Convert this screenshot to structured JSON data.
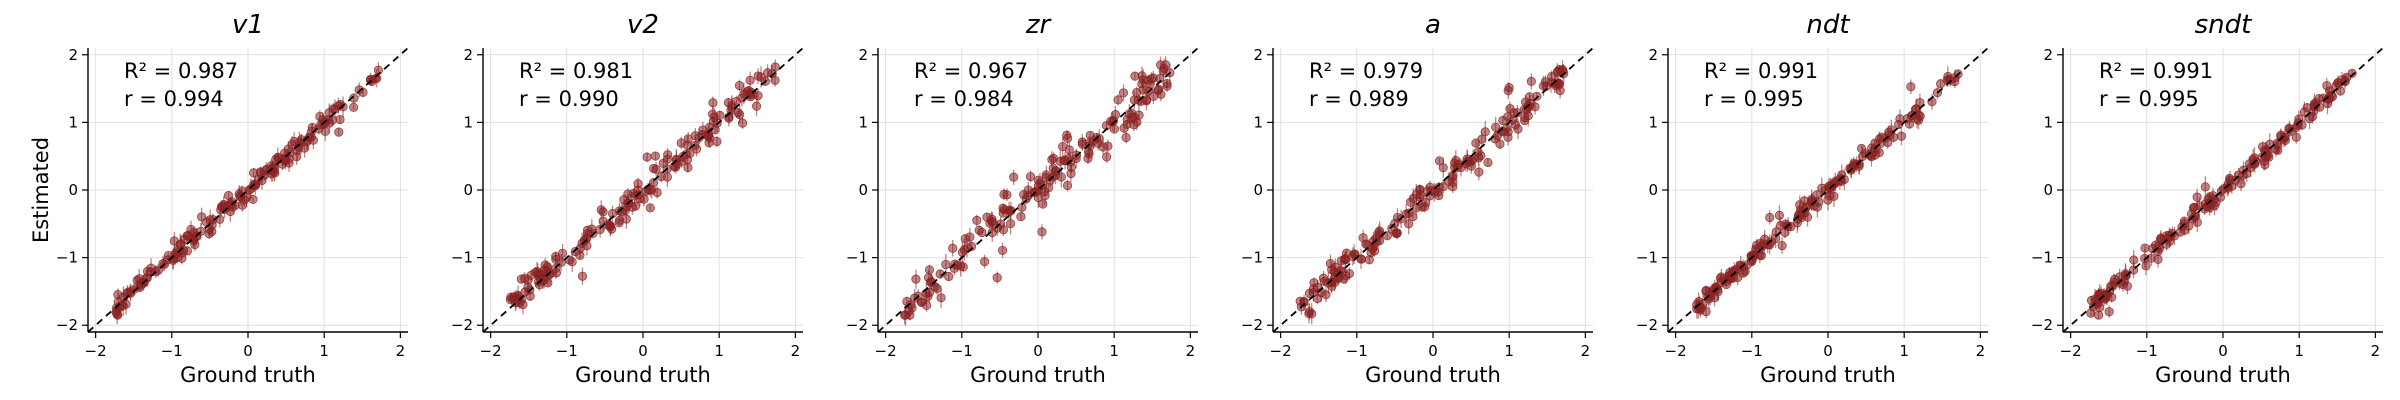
{
  "figure": {
    "ylabel": "Estimated",
    "point_color": "#8b2323",
    "identity_line_color": "#000000"
  },
  "chart_data": [
    {
      "type": "scatter",
      "title": "v1",
      "xlabel": "Ground truth",
      "ylabel": "Estimated",
      "xlim": [
        -2.1,
        2.1
      ],
      "ylim": [
        -2.1,
        2.1
      ],
      "xticks": [
        "−2",
        "−1",
        "0",
        "1",
        "2"
      ],
      "yticks": [
        "−2",
        "−1",
        "0",
        "1",
        "2"
      ],
      "grid": true,
      "identity_line": true,
      "stats": {
        "r2_label": "R² = 0.987",
        "r_label": "r = 0.994",
        "r2": 0.987,
        "r": 0.994
      },
      "points_summary": {
        "x_range": [
          -1.75,
          1.75
        ],
        "spread": 0.08,
        "error_bars": true
      }
    },
    {
      "type": "scatter",
      "title": "v2",
      "xlabel": "Ground truth",
      "xlim": [
        -2.1,
        2.1
      ],
      "ylim": [
        -2.1,
        2.1
      ],
      "xticks": [
        "−2",
        "−1",
        "0",
        "1",
        "2"
      ],
      "yticks": [
        "−2",
        "−1",
        "0",
        "1",
        "2"
      ],
      "grid": true,
      "identity_line": true,
      "stats": {
        "r2_label": "R² = 0.981",
        "r_label": "r = 0.990",
        "r2": 0.981,
        "r": 0.99
      },
      "points_summary": {
        "x_range": [
          -1.75,
          1.75
        ],
        "spread": 0.12,
        "error_bars": true
      }
    },
    {
      "type": "scatter",
      "title": "zr",
      "xlabel": "Ground truth",
      "xlim": [
        -2.1,
        2.1
      ],
      "ylim": [
        -2.1,
        2.1
      ],
      "xticks": [
        "−2",
        "−1",
        "0",
        "1",
        "2"
      ],
      "yticks": [
        "−2",
        "−1",
        "0",
        "1",
        "2"
      ],
      "grid": true,
      "identity_line": true,
      "stats": {
        "r2_label": "R² = 0.967",
        "r_label": "r = 0.984",
        "r2": 0.967,
        "r": 0.984
      },
      "points_summary": {
        "x_range": [
          -1.75,
          1.75
        ],
        "spread": 0.17,
        "error_bars": true
      }
    },
    {
      "type": "scatter",
      "title": "a",
      "xlabel": "Ground truth",
      "xlim": [
        -2.1,
        2.1
      ],
      "ylim": [
        -2.1,
        2.1
      ],
      "xticks": [
        "−2",
        "−1",
        "0",
        "1",
        "2"
      ],
      "yticks": [
        "−2",
        "−1",
        "0",
        "1",
        "2"
      ],
      "grid": true,
      "identity_line": true,
      "stats": {
        "r2_label": "R² = 0.979",
        "r_label": "r = 0.989",
        "r2": 0.979,
        "r": 0.989
      },
      "points_summary": {
        "x_range": [
          -1.75,
          1.75
        ],
        "spread": 0.11,
        "error_bars": true
      }
    },
    {
      "type": "scatter",
      "title": "ndt",
      "xlabel": "Ground truth",
      "xlim": [
        -2.1,
        2.1
      ],
      "ylim": [
        -2.1,
        2.1
      ],
      "xticks": [
        "−2",
        "−1",
        "0",
        "1",
        "2"
      ],
      "yticks": [
        "−2",
        "−1",
        "0",
        "1",
        "2"
      ],
      "grid": true,
      "identity_line": true,
      "stats": {
        "r2_label": "R² = 0.991",
        "r_label": "r = 0.995",
        "r2": 0.991,
        "r": 0.995
      },
      "points_summary": {
        "x_range": [
          -1.75,
          1.75
        ],
        "spread": 0.07,
        "error_bars": true
      }
    },
    {
      "type": "scatter",
      "title": "sndt",
      "xlabel": "Ground truth",
      "xlim": [
        -2.1,
        2.1
      ],
      "ylim": [
        -2.1,
        2.1
      ],
      "xticks": [
        "−2",
        "−1",
        "0",
        "1",
        "2"
      ],
      "yticks": [
        "−2",
        "−1",
        "0",
        "1",
        "2"
      ],
      "grid": true,
      "identity_line": true,
      "stats": {
        "r2_label": "R² = 0.991",
        "r_label": "r = 0.995",
        "r2": 0.991,
        "r": 0.995
      },
      "points_summary": {
        "x_range": [
          -1.75,
          1.75
        ],
        "spread": 0.07,
        "error_bars": true
      }
    }
  ]
}
